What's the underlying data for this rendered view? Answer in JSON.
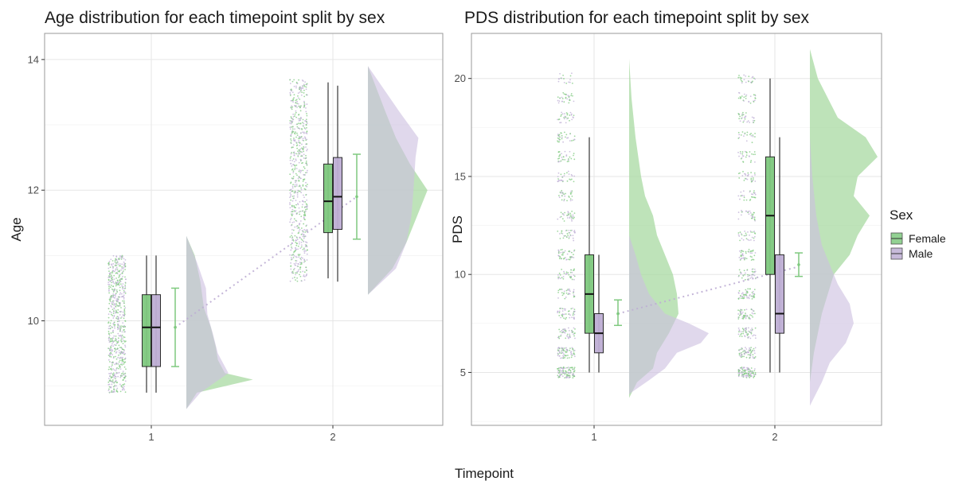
{
  "figure": {
    "x_label": "Timepoint",
    "colors": {
      "Female": "#7fc97f",
      "Male": "#beaed4",
      "rain_mix": "#9fa8a6",
      "female_cloud": "#a8d9a2",
      "male_cloud": "#cdc0e0",
      "overlap_cloud": "#a9b0b2"
    }
  },
  "legend": {
    "title": "Sex",
    "items": [
      {
        "label": "Female",
        "color": "#7fc97f"
      },
      {
        "label": "Male",
        "color": "#beaed4"
      }
    ]
  },
  "chart_data": [
    {
      "type": "raincloud",
      "title": "Age distribution for each timepoint split by sex",
      "xlabel": "Timepoint",
      "ylabel": "Age",
      "categories": [
        "1",
        "2"
      ],
      "ylim": [
        8.4,
        14.4
      ],
      "yticks": [
        10,
        12,
        14
      ],
      "grid": true,
      "rain_range": {
        "1": [
          8.9,
          11.0
        ],
        "2": [
          10.6,
          13.7
        ]
      },
      "series": [
        {
          "name": "Female",
          "box": [
            {
              "x": "1",
              "whisker_low": 8.9,
              "q1": 9.3,
              "median": 9.9,
              "q3": 10.4,
              "whisker_high": 11.0
            },
            {
              "x": "2",
              "whisker_low": 10.65,
              "q1": 11.35,
              "median": 11.83,
              "q3": 12.4,
              "whisker_high": 13.65
            }
          ],
          "mean_ci": [
            {
              "x": "1",
              "mean": 9.9,
              "lo": 9.3,
              "hi": 10.5
            },
            {
              "x": "2",
              "mean": 11.9,
              "lo": 11.25,
              "hi": 12.55
            }
          ],
          "density": [
            {
              "x": "1",
              "points": [
                [
                  8.65,
                  0
                ],
                [
                  8.9,
                  0.15
                ],
                [
                  9.1,
                  0.95
                ],
                [
                  9.2,
                  0.55
                ],
                [
                  9.4,
                  0.45
                ],
                [
                  9.6,
                  0.42
                ],
                [
                  9.9,
                  0.35
                ],
                [
                  10.2,
                  0.25
                ],
                [
                  10.6,
                  0.2
                ],
                [
                  11.0,
                  0.12
                ],
                [
                  11.3,
                  0.0
                ]
              ]
            },
            {
              "x": "2",
              "points": [
                [
                  10.4,
                  0
                ],
                [
                  10.8,
                  0.35
                ],
                [
                  11.2,
                  0.55
                ],
                [
                  11.6,
                  0.7
                ],
                [
                  12.0,
                  0.85
                ],
                [
                  12.4,
                  0.6
                ],
                [
                  12.8,
                  0.4
                ],
                [
                  13.2,
                  0.25
                ],
                [
                  13.9,
                  0.0
                ]
              ]
            }
          ]
        },
        {
          "name": "Male",
          "box": [
            {
              "x": "1",
              "whisker_low": 8.9,
              "q1": 9.3,
              "median": 9.9,
              "q3": 10.4,
              "whisker_high": 11.0
            },
            {
              "x": "2",
              "whisker_low": 10.6,
              "q1": 11.4,
              "median": 11.9,
              "q3": 12.5,
              "whisker_high": 13.6
            }
          ],
          "density": [
            {
              "x": "1",
              "points": [
                [
                  8.65,
                  0
                ],
                [
                  8.9,
                  0.2
                ],
                [
                  9.2,
                  0.6
                ],
                [
                  9.5,
                  0.45
                ],
                [
                  9.8,
                  0.38
                ],
                [
                  10.1,
                  0.3
                ],
                [
                  10.5,
                  0.28
                ],
                [
                  10.9,
                  0.15
                ],
                [
                  11.3,
                  0.0
                ]
              ]
            },
            {
              "x": "2",
              "points": [
                [
                  10.4,
                  0
                ],
                [
                  10.8,
                  0.4
                ],
                [
                  11.2,
                  0.55
                ],
                [
                  11.6,
                  0.62
                ],
                [
                  12.0,
                  0.65
                ],
                [
                  12.5,
                  0.68
                ],
                [
                  12.8,
                  0.72
                ],
                [
                  13.2,
                  0.45
                ],
                [
                  13.9,
                  0.0
                ]
              ]
            }
          ]
        }
      ],
      "mean_line": {
        "from": [
          "1",
          9.9
        ],
        "to": [
          "2",
          11.9
        ]
      }
    },
    {
      "type": "raincloud",
      "title": "PDS distribution for each timepoint split by sex",
      "xlabel": "Timepoint",
      "ylabel": "PDS",
      "categories": [
        "1",
        "2"
      ],
      "ylim": [
        2.3,
        22.3
      ],
      "yticks": [
        5,
        10,
        15,
        20
      ],
      "grid": true,
      "rain_range": {
        "1": [
          4.7,
          20.3
        ],
        "2": [
          4.7,
          20.2
        ]
      },
      "series": [
        {
          "name": "Female",
          "box": [
            {
              "x": "1",
              "whisker_low": 5,
              "q1": 7,
              "median": 9,
              "q3": 11,
              "whisker_high": 17
            },
            {
              "x": "2",
              "whisker_low": 5,
              "q1": 10,
              "median": 13,
              "q3": 16,
              "whisker_high": 20
            }
          ],
          "mean_ci": [
            {
              "x": "1",
              "mean": 8.0,
              "lo": 7.4,
              "hi": 8.7
            },
            {
              "x": "2",
              "mean": 10.5,
              "lo": 9.9,
              "hi": 11.1
            }
          ],
          "density": [
            {
              "x": "1",
              "points": [
                [
                  3.7,
                  0
                ],
                [
                  4.5,
                  0.1
                ],
                [
                  5.2,
                  0.3
                ],
                [
                  6,
                  0.35
                ],
                [
                  7,
                  0.5
                ],
                [
                  8,
                  0.62
                ],
                [
                  9,
                  0.6
                ],
                [
                  10,
                  0.55
                ],
                [
                  11,
                  0.45
                ],
                [
                  12,
                  0.35
                ],
                [
                  13,
                  0.3
                ],
                [
                  14,
                  0.2
                ],
                [
                  15,
                  0.15
                ],
                [
                  17,
                  0.08
                ],
                [
                  19,
                  0.03
                ],
                [
                  21,
                  0.0
                ]
              ]
            },
            {
              "x": "2",
              "points": [
                [
                  4.5,
                  0
                ],
                [
                  6,
                  0.05
                ],
                [
                  8,
                  0.15
                ],
                [
                  10,
                  0.3
                ],
                [
                  11,
                  0.5
                ],
                [
                  12,
                  0.6
                ],
                [
                  13,
                  0.75
                ],
                [
                  14,
                  0.55
                ],
                [
                  15,
                  0.6
                ],
                [
                  16,
                  0.85
                ],
                [
                  17,
                  0.7
                ],
                [
                  18,
                  0.35
                ],
                [
                  20,
                  0.1
                ],
                [
                  21.5,
                  0.0
                ]
              ]
            }
          ]
        },
        {
          "name": "Male",
          "box": [
            {
              "x": "1",
              "whisker_low": 5,
              "q1": 6,
              "median": 7,
              "q3": 8,
              "whisker_high": 11
            },
            {
              "x": "2",
              "whisker_low": 5,
              "q1": 7,
              "median": 8,
              "q3": 11,
              "whisker_high": 17
            }
          ],
          "density": [
            {
              "x": "1",
              "points": [
                [
                  3.9,
                  0
                ],
                [
                  4.6,
                  0.25
                ],
                [
                  5.2,
                  0.45
                ],
                [
                  6,
                  0.6
                ],
                [
                  6.5,
                  0.9
                ],
                [
                  7,
                  1.0
                ],
                [
                  7.5,
                  0.75
                ],
                [
                  8,
                  0.45
                ],
                [
                  9,
                  0.25
                ],
                [
                  10,
                  0.15
                ],
                [
                  11,
                  0.08
                ],
                [
                  12,
                  0.0
                ]
              ]
            },
            {
              "x": "2",
              "points": [
                [
                  3.3,
                  0
                ],
                [
                  4.5,
                  0.15
                ],
                [
                  5.5,
                  0.25
                ],
                [
                  6.5,
                  0.45
                ],
                [
                  7.5,
                  0.55
                ],
                [
                  8.5,
                  0.5
                ],
                [
                  9.5,
                  0.35
                ],
                [
                  10.5,
                  0.25
                ],
                [
                  11.5,
                  0.15
                ],
                [
                  13,
                  0.08
                ],
                [
                  15,
                  0.03
                ],
                [
                  17,
                  0.0
                ]
              ]
            }
          ]
        }
      ],
      "mean_line": {
        "from": [
          "1",
          8.0
        ],
        "to": [
          "2",
          10.4
        ]
      }
    }
  ]
}
